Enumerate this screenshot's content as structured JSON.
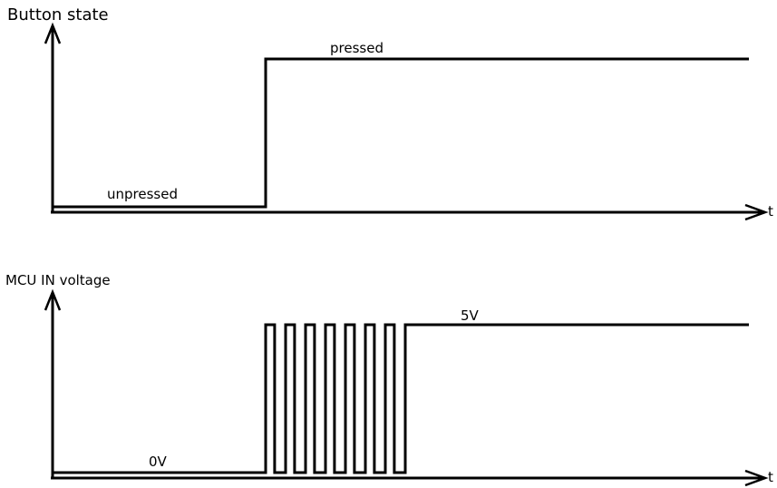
{
  "diagram1": {
    "title": "Button state",
    "axis_label": "t",
    "low_label": "unpressed",
    "high_label": "pressed"
  },
  "diagram2": {
    "title": "MCU IN voltage",
    "axis_label": "t",
    "low_label": "0V",
    "high_label": "5V",
    "bounce_pulses": 8
  }
}
